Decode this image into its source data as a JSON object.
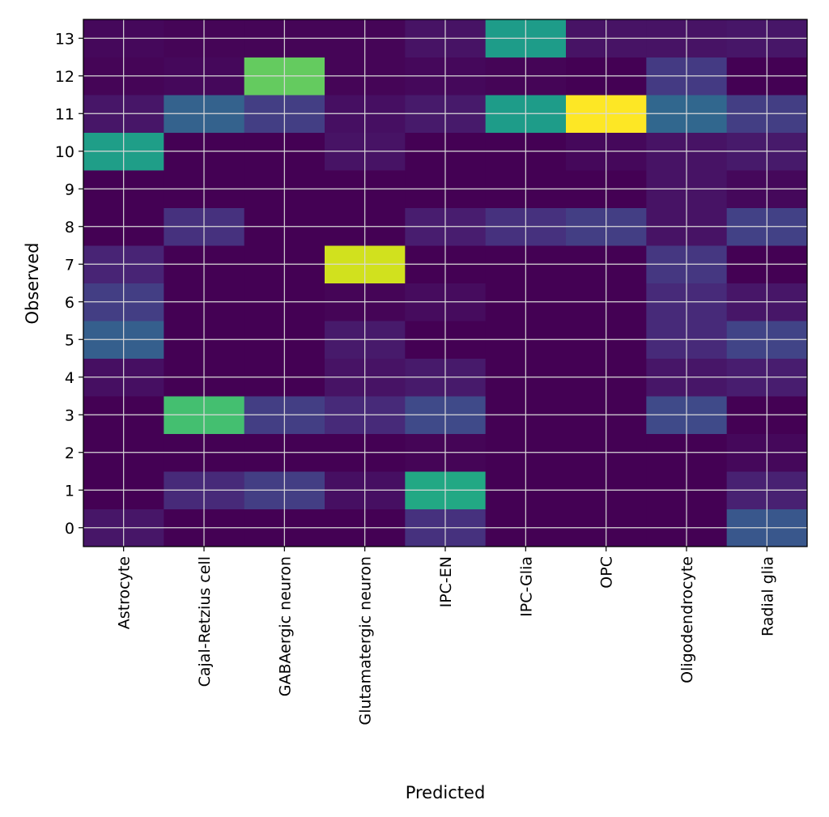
{
  "chart_data": {
    "type": "heatmap",
    "title": "",
    "xlabel": "Predicted",
    "ylabel": "Observed",
    "x_categories": [
      "Astrocyte",
      "Cajal-Retzius cell",
      "GABAergic neuron",
      "Glutamatergic neuron",
      "IPC-EN",
      "IPC-Glia",
      "OPC",
      "Oligodendrocyte",
      "Radial glia"
    ],
    "y_categories": [
      "0",
      "1",
      "2",
      "3",
      "4",
      "5",
      "6",
      "7",
      "8",
      "9",
      "10",
      "11",
      "12",
      "13"
    ],
    "colormap": "viridis",
    "value_range": [
      0,
      1
    ],
    "grid": true,
    "colorbar": false,
    "values": [
      [
        0.06,
        0.0,
        0.0,
        0.0,
        0.14,
        0.0,
        0.0,
        0.0,
        0.27
      ],
      [
        0.0,
        0.12,
        0.18,
        0.04,
        0.6,
        0.0,
        0.0,
        0.0,
        0.09
      ],
      [
        0.0,
        0.0,
        0.0,
        0.0,
        0.01,
        0.0,
        0.0,
        0.0,
        0.02
      ],
      [
        0.0,
        0.7,
        0.18,
        0.12,
        0.22,
        0.0,
        0.0,
        0.22,
        0.0
      ],
      [
        0.04,
        0.0,
        0.0,
        0.05,
        0.07,
        0.0,
        0.0,
        0.06,
        0.08
      ],
      [
        0.3,
        0.0,
        0.0,
        0.07,
        0.0,
        0.0,
        0.0,
        0.12,
        0.2
      ],
      [
        0.18,
        0.0,
        0.0,
        0.01,
        0.03,
        0.0,
        0.0,
        0.12,
        0.06
      ],
      [
        0.1,
        0.0,
        0.0,
        0.93,
        0.0,
        0.0,
        0.0,
        0.16,
        0.0
      ],
      [
        0.0,
        0.14,
        0.0,
        0.0,
        0.08,
        0.14,
        0.18,
        0.05,
        0.19
      ],
      [
        0.0,
        0.0,
        0.0,
        0.0,
        0.0,
        0.0,
        0.0,
        0.05,
        0.02
      ],
      [
        0.56,
        0.0,
        0.0,
        0.05,
        0.0,
        0.0,
        0.02,
        0.05,
        0.07
      ],
      [
        0.06,
        0.31,
        0.18,
        0.04,
        0.07,
        0.55,
        1.0,
        0.33,
        0.18
      ],
      [
        0.01,
        0.02,
        0.76,
        0.01,
        0.02,
        0.01,
        0.0,
        0.17,
        0.0
      ],
      [
        0.02,
        0.01,
        0.01,
        0.01,
        0.05,
        0.55,
        0.05,
        0.05,
        0.06
      ]
    ]
  }
}
